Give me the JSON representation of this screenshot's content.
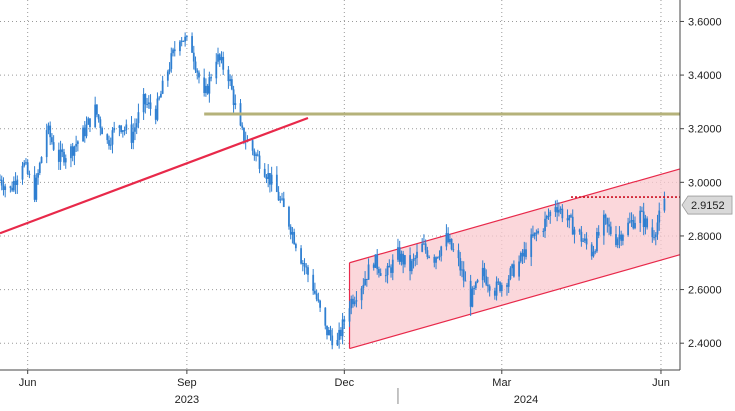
{
  "chart_data": {
    "type": "line",
    "style": "candlestick",
    "title": "",
    "xlabel": "",
    "ylabel": "",
    "ylim": [
      2.3,
      3.68
    ],
    "xlim": [
      "2023-05-16",
      "2024-06-12"
    ],
    "y_ticks": [
      "3.6000",
      "3.4000",
      "3.2000",
      "3.0000",
      "2.8000",
      "2.6000",
      "2.4000"
    ],
    "y_tick_values": [
      3.6,
      3.4,
      3.2,
      3.0,
      2.8,
      2.6,
      2.4
    ],
    "x_ticks": [
      {
        "label": "Jun",
        "date": "2023-06-01"
      },
      {
        "label": "Sep",
        "date": "2023-09-01"
      },
      {
        "label": "Dec",
        "date": "2023-12-01"
      },
      {
        "label": "Mar",
        "date": "2024-03-01"
      },
      {
        "label": "Jun",
        "date": "2024-06-01"
      }
    ],
    "year_labels": [
      {
        "label": "2023",
        "date": "2023-09-01"
      },
      {
        "label": "2024",
        "date": "2024-03-15"
      }
    ],
    "year_divider_date": "2024-01-01",
    "last_value": "2.9152",
    "grid": true,
    "colors": {
      "candle": "#2f7fd1",
      "trendline": "#e8294a",
      "resistance": "#b5b27a",
      "channel_fill": "#f9c9cf",
      "channel_edge": "#e8294a",
      "last_value_line": "#cc1122",
      "last_value_badge": "#d9d9d9"
    },
    "trendline": [
      {
        "date": "2023-05-16",
        "value": 2.81
      },
      {
        "date": "2023-11-10",
        "value": 3.24
      }
    ],
    "resistance": [
      {
        "date": "2023-09-11",
        "value": 3.255
      },
      {
        "date": "2024-06-12",
        "value": 3.255
      }
    ],
    "channel": {
      "upper": [
        {
          "date": "2023-12-04",
          "value": 2.7
        },
        {
          "date": "2024-06-12",
          "value": 3.05
        }
      ],
      "lower": [
        {
          "date": "2023-12-04",
          "value": 2.38
        },
        {
          "date": "2024-06-12",
          "value": 2.73
        }
      ]
    },
    "last_value_line": [
      {
        "date": "2024-04-10",
        "value": 2.945
      },
      {
        "date": "2024-06-12",
        "value": 2.945
      }
    ],
    "series": [
      {
        "x": [
          "2023-05-16",
          "2023-05-22",
          "2023-05-29",
          "2023-06-05",
          "2023-06-12",
          "2023-06-19",
          "2023-06-26",
          "2023-07-03",
          "2023-07-10",
          "2023-07-17",
          "2023-07-24",
          "2023-07-31",
          "2023-08-07",
          "2023-08-14",
          "2023-08-21",
          "2023-08-28",
          "2023-09-04",
          "2023-09-11",
          "2023-09-18",
          "2023-09-25",
          "2023-10-02",
          "2023-10-09",
          "2023-10-16",
          "2023-10-23",
          "2023-10-30",
          "2023-11-06",
          "2023-11-13",
          "2023-11-20",
          "2023-11-27",
          "2023-12-04",
          "2023-12-11",
          "2023-12-18",
          "2023-12-25",
          "2024-01-01",
          "2024-01-08",
          "2024-01-15",
          "2024-01-22",
          "2024-01-29",
          "2024-02-05",
          "2024-02-12",
          "2024-02-19",
          "2024-02-26",
          "2024-03-04",
          "2024-03-11",
          "2024-03-18",
          "2024-03-25",
          "2024-04-01",
          "2024-04-08",
          "2024-04-15",
          "2024-04-22",
          "2024-04-29",
          "2024-05-06",
          "2024-05-13",
          "2024-05-20",
          "2024-05-27",
          "2024-06-03"
        ],
        "values": [
          3.01,
          2.97,
          3.08,
          2.96,
          3.2,
          3.09,
          3.12,
          3.18,
          3.27,
          3.15,
          3.22,
          3.17,
          3.3,
          3.26,
          3.42,
          3.55,
          3.5,
          3.31,
          3.47,
          3.4,
          3.19,
          3.12,
          3.05,
          2.96,
          2.85,
          2.72,
          2.61,
          2.45,
          2.4,
          2.55,
          2.62,
          2.71,
          2.65,
          2.73,
          2.68,
          2.76,
          2.72,
          2.79,
          2.7,
          2.56,
          2.66,
          2.6,
          2.64,
          2.7,
          2.78,
          2.84,
          2.92,
          2.86,
          2.8,
          2.74,
          2.85,
          2.79,
          2.84,
          2.88,
          2.8,
          2.92
        ]
      }
    ]
  }
}
